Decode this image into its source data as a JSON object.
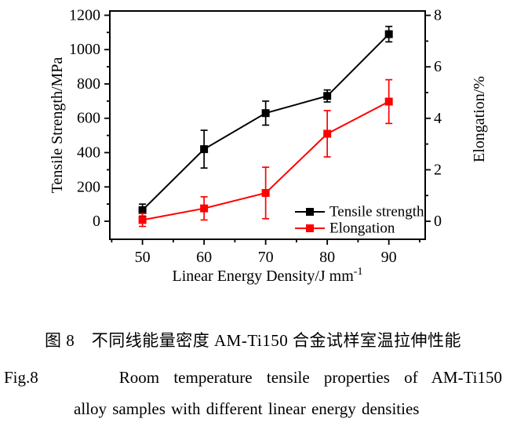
{
  "figure": {
    "captions": {
      "zh": "图 8　不同线能量密度 AM-Ti150 合金试样室温拉伸性能",
      "en_label": "Fig.8",
      "en_line1": "Room temperature tensile properties of AM-Ti150",
      "en_line2": "alloy samples with different linear energy densities"
    }
  },
  "chart_data": {
    "type": "line",
    "title": "",
    "x": [
      50,
      60,
      70,
      80,
      90
    ],
    "x_minor_ticks": [
      45,
      55,
      65,
      75,
      85,
      95
    ],
    "x_range": [
      44.7,
      95.9
    ],
    "xlabel": {
      "text": "Linear Energy Density/J mm",
      "superscript": "-1"
    },
    "left_axis": {
      "label": "Tensile Strength/MPa",
      "ticks": [
        0,
        200,
        400,
        600,
        800,
        1000,
        1200
      ],
      "minor_ticks": [
        100,
        300,
        500,
        700,
        900,
        1100
      ],
      "range": [
        -105,
        1225
      ]
    },
    "right_axis": {
      "label": "Elongation/%",
      "ticks": [
        0,
        2,
        4,
        6,
        8
      ],
      "minor_ticks": [
        1,
        3,
        5,
        7
      ],
      "range": [
        -0.7,
        8.17
      ]
    },
    "series": [
      {
        "name": "Tensile strength",
        "axis": "left",
        "color": "#000000",
        "marker": "square",
        "values": [
          65,
          420,
          630,
          730,
          1090
        ],
        "errors": [
          35,
          110,
          70,
          35,
          45
        ]
      },
      {
        "name": "Elongation",
        "axis": "right",
        "color": "#ff0000",
        "marker": "square",
        "values": [
          0.05,
          0.5,
          1.1,
          3.4,
          4.65
        ],
        "errors": [
          0.25,
          0.45,
          1.0,
          0.9,
          0.85
        ]
      }
    ],
    "legend": {
      "position": "inside-bottom-right",
      "entries": [
        "Tensile strength",
        "Elongation"
      ]
    },
    "grid": false
  }
}
